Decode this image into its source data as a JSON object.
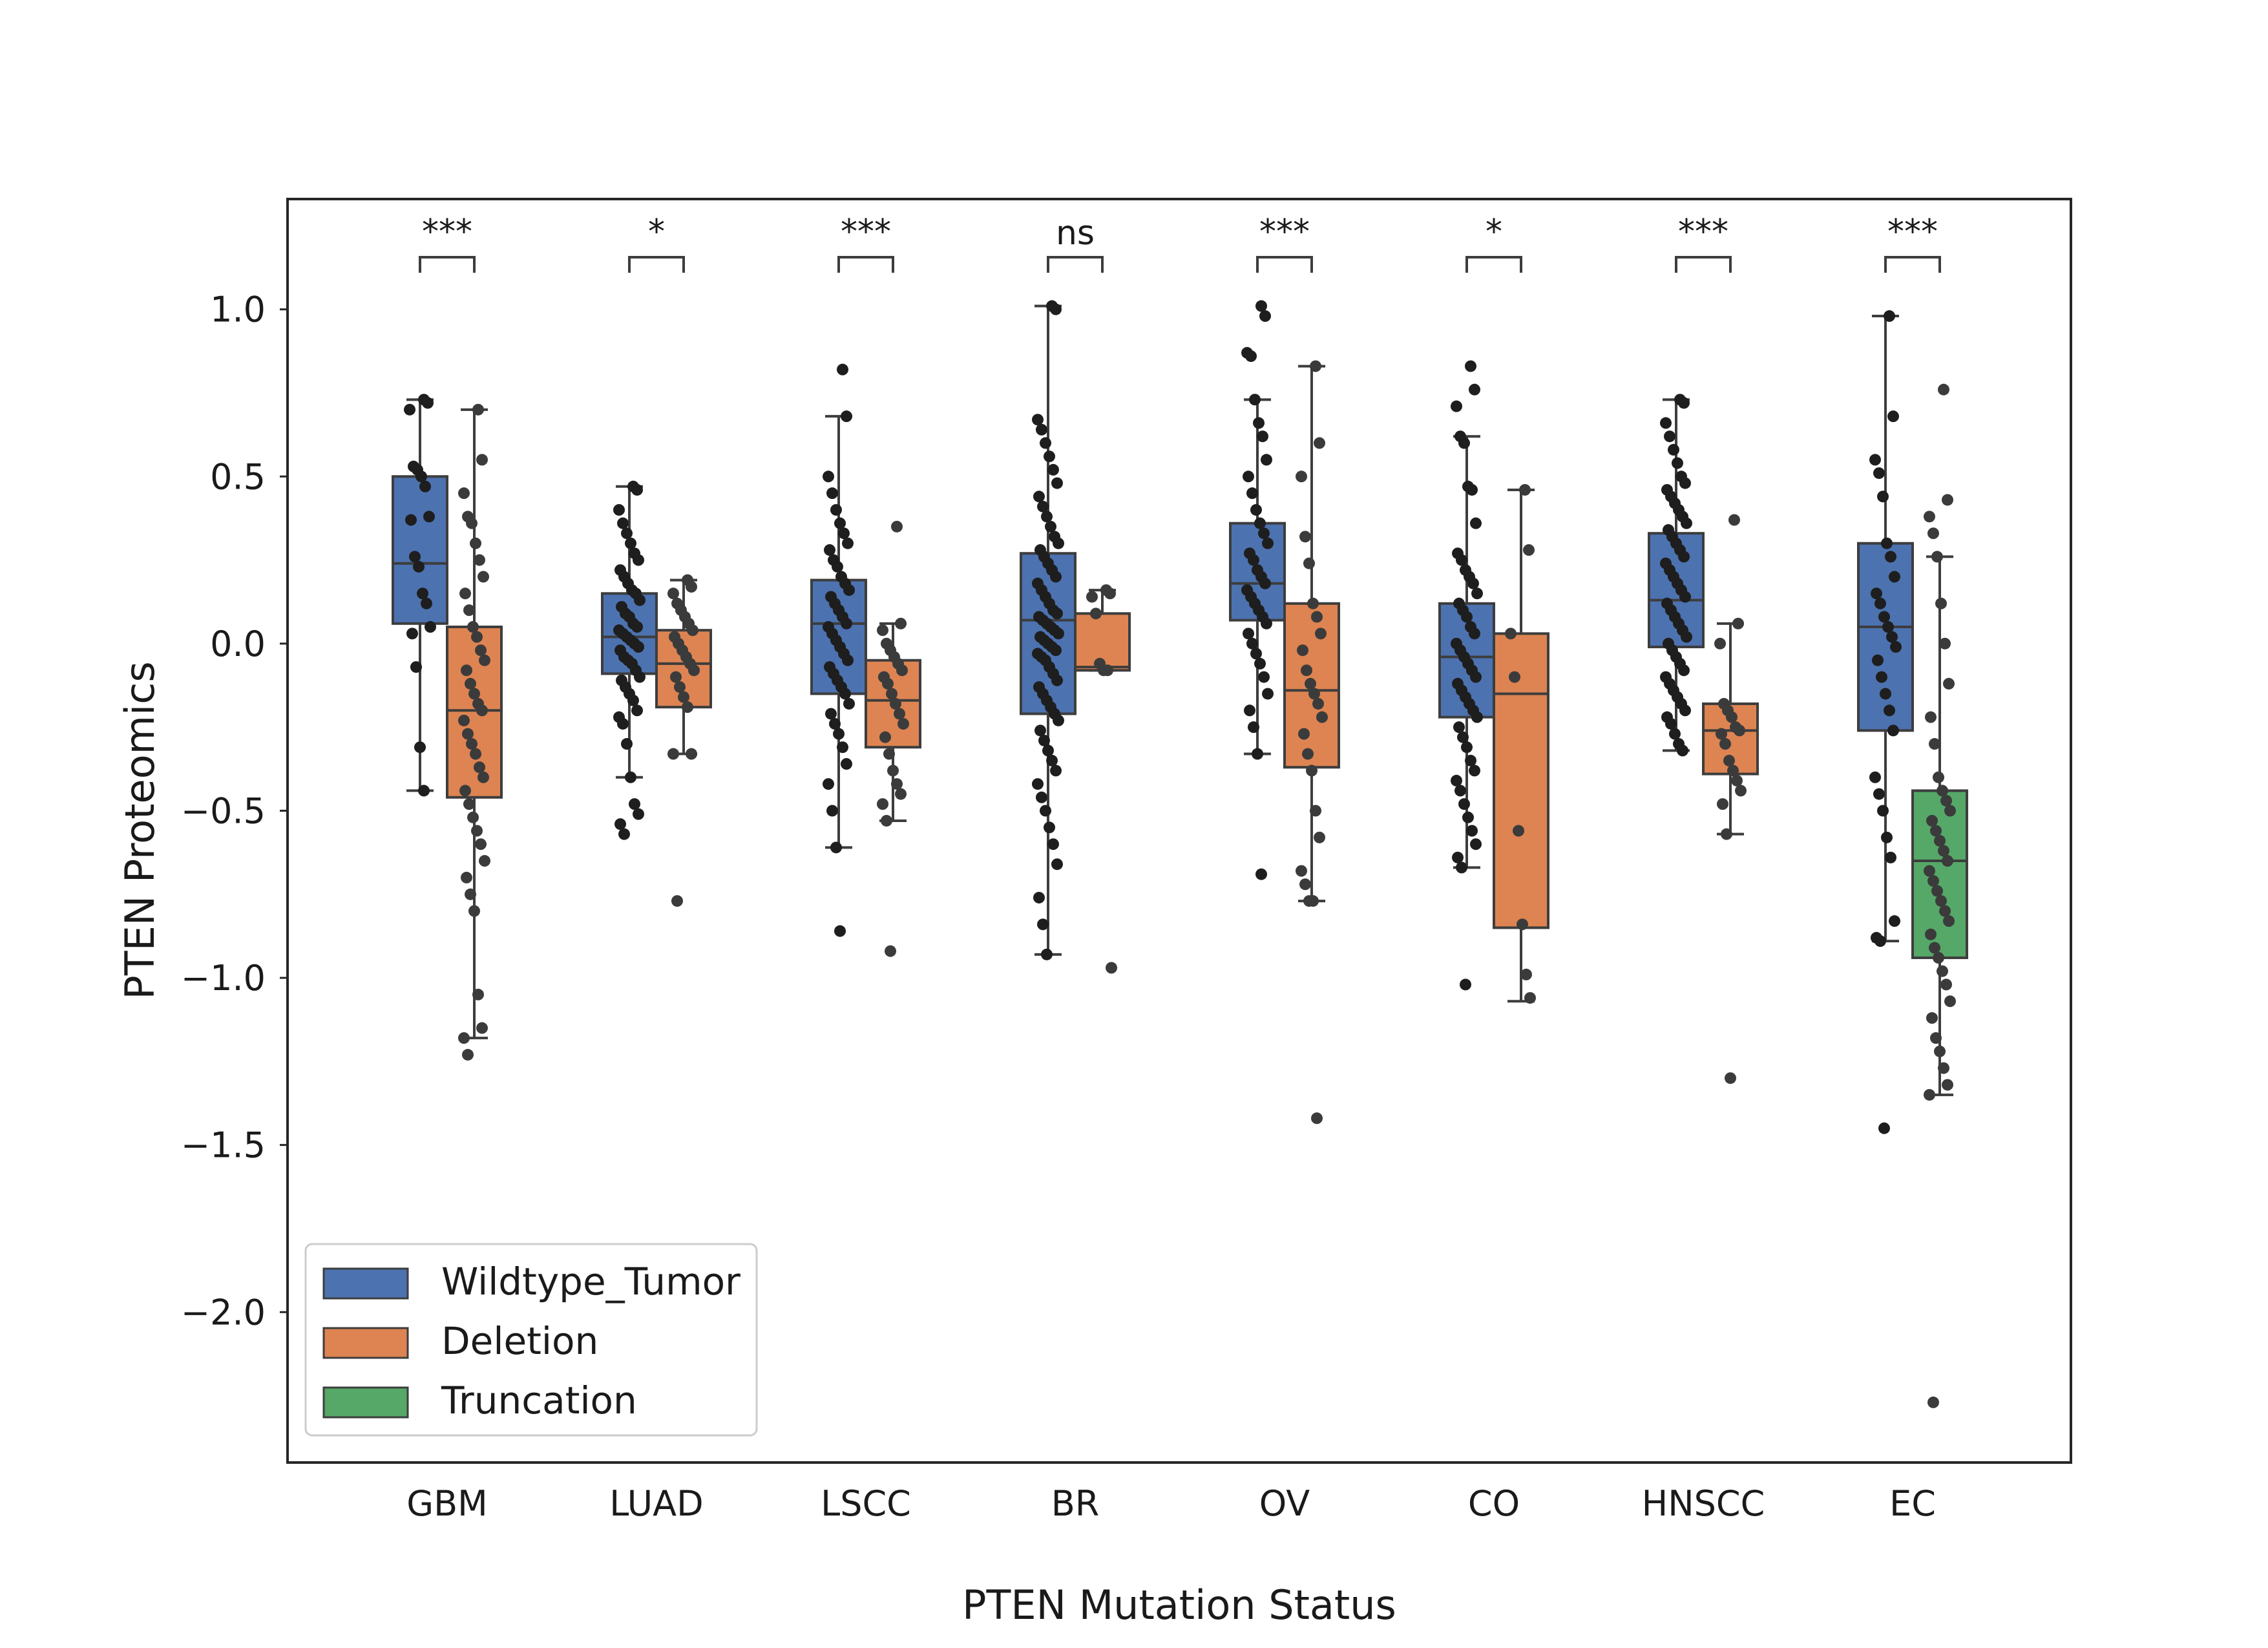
{
  "chart_data": {
    "type": "box",
    "title": "",
    "xlabel": "PTEN Mutation Status",
    "ylabel": "PTEN Proteomics",
    "ylim": [
      -2.45,
      1.33
    ],
    "yticks": [
      1.0,
      0.5,
      0.0,
      -0.5,
      -1.0,
      -1.5,
      -2.0
    ],
    "ytick_labels": [
      "1.0",
      "0.5",
      "0.0",
      "−0.5",
      "−1.0",
      "−1.5",
      "−2.0"
    ],
    "grid": false,
    "legend_position": "lower-left",
    "categories": [
      "GBM",
      "LUAD",
      "LSCC",
      "BR",
      "OV",
      "CO",
      "HNSCC",
      "EC"
    ],
    "series": [
      {
        "name": "Wildtype_Tumor",
        "color": "#4c72b0",
        "boxes": {
          "GBM": {
            "whislo": -0.44,
            "q1": 0.06,
            "med": 0.24,
            "q3": 0.5,
            "whishi": 0.73
          },
          "LUAD": {
            "whislo": -0.4,
            "q1": -0.09,
            "med": 0.02,
            "q3": 0.15,
            "whishi": 0.47
          },
          "LSCC": {
            "whislo": -0.61,
            "q1": -0.15,
            "med": 0.06,
            "q3": 0.19,
            "whishi": 0.68
          },
          "BR": {
            "whislo": -0.93,
            "q1": -0.21,
            "med": 0.07,
            "q3": 0.27,
            "whishi": 1.01
          },
          "OV": {
            "whislo": -0.33,
            "q1": 0.07,
            "med": 0.18,
            "q3": 0.36,
            "whishi": 0.73
          },
          "CO": {
            "whislo": -0.67,
            "q1": -0.22,
            "med": -0.04,
            "q3": 0.12,
            "whishi": 0.62
          },
          "HNSCC": {
            "whislo": -0.32,
            "q1": -0.01,
            "med": 0.13,
            "q3": 0.33,
            "whishi": 0.73
          },
          "EC": {
            "whislo": -0.89,
            "q1": -0.26,
            "med": 0.05,
            "q3": 0.3,
            "whishi": 0.98
          }
        },
        "points": {
          "GBM": [
            0.73,
            0.72,
            0.7,
            0.53,
            0.52,
            0.5,
            0.47,
            0.38,
            0.37,
            0.26,
            0.23,
            0.15,
            0.12,
            0.05,
            0.03,
            -0.07,
            -0.31,
            -0.44
          ],
          "LUAD": [
            0.47,
            0.46,
            0.4,
            0.36,
            0.33,
            0.3,
            0.27,
            0.25,
            0.22,
            0.2,
            0.18,
            0.16,
            0.15,
            0.13,
            0.11,
            0.09,
            0.08,
            0.06,
            0.05,
            0.04,
            0.03,
            0.02,
            0.01,
            0.0,
            -0.01,
            -0.02,
            -0.04,
            -0.05,
            -0.06,
            -0.08,
            -0.1,
            -0.11,
            -0.13,
            -0.15,
            -0.17,
            -0.2,
            -0.22,
            -0.24,
            -0.3,
            -0.4,
            -0.48,
            -0.51,
            -0.54,
            -0.57
          ],
          "LSCC": [
            0.82,
            0.68,
            0.5,
            0.45,
            0.4,
            0.36,
            0.33,
            0.3,
            0.28,
            0.25,
            0.23,
            0.2,
            0.18,
            0.16,
            0.14,
            0.12,
            0.1,
            0.08,
            0.06,
            0.05,
            0.03,
            0.01,
            -0.01,
            -0.03,
            -0.05,
            -0.07,
            -0.09,
            -0.11,
            -0.13,
            -0.15,
            -0.18,
            -0.21,
            -0.24,
            -0.27,
            -0.31,
            -0.36,
            -0.42,
            -0.5,
            -0.61,
            -0.86
          ],
          "BR": [
            1.01,
            1.0,
            0.67,
            0.64,
            0.6,
            0.56,
            0.52,
            0.48,
            0.44,
            0.41,
            0.38,
            0.35,
            0.32,
            0.3,
            0.28,
            0.26,
            0.24,
            0.22,
            0.2,
            0.18,
            0.16,
            0.14,
            0.12,
            0.1,
            0.09,
            0.08,
            0.07,
            0.06,
            0.05,
            0.04,
            0.03,
            0.02,
            0.01,
            0.0,
            -0.01,
            -0.02,
            -0.03,
            -0.04,
            -0.05,
            -0.07,
            -0.09,
            -0.11,
            -0.13,
            -0.15,
            -0.17,
            -0.19,
            -0.21,
            -0.23,
            -0.26,
            -0.29,
            -0.32,
            -0.35,
            -0.38,
            -0.42,
            -0.46,
            -0.5,
            -0.55,
            -0.6,
            -0.66,
            -0.76,
            -0.84,
            -0.93
          ],
          "OV": [
            1.01,
            0.98,
            0.87,
            0.86,
            0.73,
            0.66,
            0.62,
            0.55,
            0.5,
            0.45,
            0.4,
            0.36,
            0.33,
            0.3,
            0.27,
            0.25,
            0.22,
            0.2,
            0.18,
            0.16,
            0.14,
            0.12,
            0.1,
            0.08,
            0.06,
            0.03,
            0.0,
            -0.03,
            -0.06,
            -0.1,
            -0.15,
            -0.2,
            -0.25,
            -0.33,
            -0.69
          ],
          "CO": [
            0.83,
            0.76,
            0.71,
            0.62,
            0.6,
            0.47,
            0.46,
            0.36,
            0.27,
            0.25,
            0.22,
            0.2,
            0.18,
            0.15,
            0.12,
            0.1,
            0.08,
            0.05,
            0.03,
            0.0,
            -0.02,
            -0.04,
            -0.06,
            -0.08,
            -0.1,
            -0.12,
            -0.14,
            -0.16,
            -0.18,
            -0.2,
            -0.22,
            -0.25,
            -0.28,
            -0.31,
            -0.35,
            -0.38,
            -0.41,
            -0.44,
            -0.48,
            -0.52,
            -0.56,
            -0.6,
            -0.64,
            -0.67,
            -1.02
          ],
          "HNSCC": [
            0.73,
            0.72,
            0.66,
            0.62,
            0.58,
            0.54,
            0.5,
            0.48,
            0.46,
            0.44,
            0.42,
            0.4,
            0.38,
            0.36,
            0.34,
            0.32,
            0.3,
            0.28,
            0.26,
            0.24,
            0.22,
            0.2,
            0.18,
            0.16,
            0.14,
            0.12,
            0.1,
            0.08,
            0.06,
            0.04,
            0.02,
            0.0,
            -0.02,
            -0.04,
            -0.06,
            -0.08,
            -0.1,
            -0.12,
            -0.14,
            -0.16,
            -0.18,
            -0.2,
            -0.22,
            -0.24,
            -0.27,
            -0.3,
            -0.32
          ],
          "EC": [
            0.98,
            0.68,
            0.55,
            0.51,
            0.44,
            0.3,
            0.26,
            0.2,
            0.15,
            0.12,
            0.08,
            0.05,
            0.02,
            -0.01,
            -0.05,
            -0.1,
            -0.15,
            -0.2,
            -0.26,
            -0.4,
            -0.45,
            -0.5,
            -0.58,
            -0.64,
            -0.83,
            -0.88,
            -0.89,
            -1.45
          ]
        }
      },
      {
        "name": "Deletion",
        "color": "#dd8452",
        "boxes": {
          "GBM": {
            "whislo": -1.18,
            "q1": -0.46,
            "med": -0.2,
            "q3": 0.05,
            "whishi": 0.7
          },
          "LUAD": {
            "whislo": -0.33,
            "q1": -0.19,
            "med": -0.06,
            "q3": 0.04,
            "whishi": 0.19
          },
          "LSCC": {
            "whislo": -0.53,
            "q1": -0.31,
            "med": -0.17,
            "q3": -0.05,
            "whishi": 0.06
          },
          "BR": {
            "whislo": -0.08,
            "q1": -0.08,
            "med": -0.07,
            "q3": 0.09,
            "whishi": 0.16
          },
          "OV": {
            "whislo": -0.77,
            "q1": -0.37,
            "med": -0.14,
            "q3": 0.12,
            "whishi": 0.83
          },
          "CO": {
            "whislo": -1.07,
            "q1": -0.85,
            "med": -0.15,
            "q3": 0.03,
            "whishi": 0.46
          },
          "HNSCC": {
            "whislo": -0.57,
            "q1": -0.39,
            "med": -0.26,
            "q3": -0.18,
            "whishi": 0.06
          }
        },
        "points": {
          "GBM": [
            0.7,
            0.55,
            0.45,
            0.38,
            0.36,
            0.3,
            0.25,
            0.2,
            0.15,
            0.1,
            0.05,
            0.02,
            -0.02,
            -0.05,
            -0.08,
            -0.12,
            -0.15,
            -0.18,
            -0.2,
            -0.23,
            -0.27,
            -0.3,
            -0.33,
            -0.37,
            -0.4,
            -0.44,
            -0.48,
            -0.52,
            -0.56,
            -0.6,
            -0.65,
            -0.7,
            -0.75,
            -0.8,
            -1.05,
            -1.15,
            -1.18,
            -1.23
          ],
          "LUAD": [
            0.19,
            0.17,
            0.15,
            0.12,
            0.1,
            0.08,
            0.06,
            0.04,
            0.02,
            0.0,
            -0.02,
            -0.04,
            -0.06,
            -0.08,
            -0.1,
            -0.13,
            -0.16,
            -0.19,
            -0.33,
            -0.33,
            -0.77
          ],
          "LSCC": [
            0.35,
            0.06,
            0.04,
            0.0,
            -0.02,
            -0.04,
            -0.06,
            -0.08,
            -0.1,
            -0.12,
            -0.15,
            -0.18,
            -0.21,
            -0.24,
            -0.28,
            -0.33,
            -0.38,
            -0.42,
            -0.45,
            -0.48,
            -0.53,
            -0.92
          ],
          "BR": [
            0.16,
            0.15,
            0.14,
            0.09,
            -0.06,
            -0.08,
            -0.08,
            -0.97
          ],
          "OV": [
            0.83,
            0.6,
            0.5,
            0.32,
            0.24,
            0.12,
            0.08,
            0.03,
            -0.02,
            -0.08,
            -0.12,
            -0.15,
            -0.18,
            -0.22,
            -0.27,
            -0.33,
            -0.38,
            -0.5,
            -0.58,
            -0.68,
            -0.72,
            -0.77,
            -0.77,
            -1.42
          ],
          "CO": [
            0.46,
            0.28,
            0.03,
            -0.1,
            -0.56,
            -0.84,
            -0.99,
            -1.06
          ],
          "HNSCC": [
            0.37,
            0.06,
            0.0,
            -0.18,
            -0.2,
            -0.22,
            -0.25,
            -0.26,
            -0.27,
            -0.3,
            -0.35,
            -0.38,
            -0.41,
            -0.44,
            -0.48,
            -0.57,
            -1.3
          ]
        }
      },
      {
        "name": "Truncation",
        "color": "#55a868",
        "boxes": {
          "EC": {
            "whislo": -1.35,
            "q1": -0.94,
            "med": -0.65,
            "q3": -0.44,
            "whishi": 0.26
          }
        },
        "points": {
          "EC": [
            0.76,
            0.43,
            0.38,
            0.33,
            0.26,
            0.12,
            0.0,
            -0.12,
            -0.22,
            -0.3,
            -0.4,
            -0.44,
            -0.47,
            -0.5,
            -0.53,
            -0.56,
            -0.59,
            -0.62,
            -0.65,
            -0.68,
            -0.71,
            -0.74,
            -0.77,
            -0.8,
            -0.83,
            -0.87,
            -0.91,
            -0.94,
            -0.98,
            -1.02,
            -1.07,
            -1.12,
            -1.18,
            -1.22,
            -1.27,
            -1.32,
            -1.35,
            -2.27
          ]
        }
      }
    ],
    "annotations": [
      {
        "category": "GBM",
        "label": "***"
      },
      {
        "category": "LUAD",
        "label": "*"
      },
      {
        "category": "LSCC",
        "label": "***"
      },
      {
        "category": "BR",
        "label": "ns"
      },
      {
        "category": "OV",
        "label": "***"
      },
      {
        "category": "CO",
        "label": "*"
      },
      {
        "category": "HNSCC",
        "label": "***"
      },
      {
        "category": "EC",
        "label": "***"
      }
    ]
  }
}
